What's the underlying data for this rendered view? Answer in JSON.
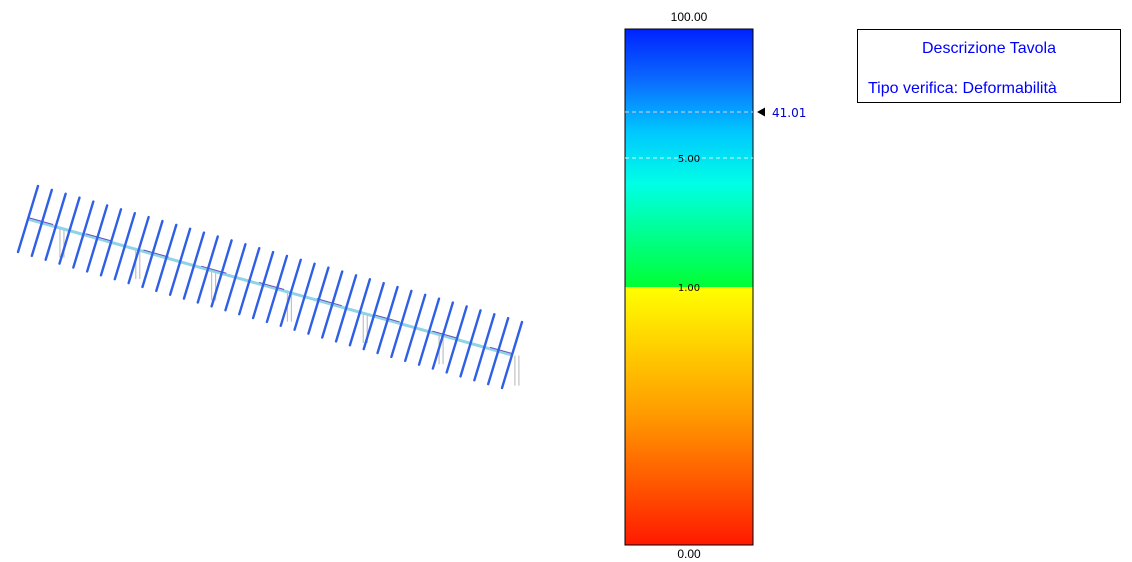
{
  "structure": {
    "rib_count": 36,
    "support_count": 7,
    "colors": {
      "ribs": "#2f5fe6",
      "beam_main": "#8fd3e6",
      "beam_alt": "#6a4fc0",
      "supports": "#c0c0c0"
    }
  },
  "color_scale": {
    "top_label": "100.00",
    "mid_label": "5.00",
    "low_label": "1.00",
    "bottom_label": "0.00",
    "marker_value": "41.01",
    "marker_color": "#0000cc",
    "upper_gradient": [
      "#0022ff",
      "#0a6bff",
      "#00c8ff",
      "#00ffe6",
      "#00ff8c",
      "#00ff33"
    ],
    "lower_gradient": [
      "#ffff00",
      "#ffcc00",
      "#ff9900",
      "#ff5a00",
      "#ff1a00"
    ]
  },
  "description": {
    "title": "Descrizione Tavola",
    "type": "Tipo verifica: Deformabilità",
    "text_color": "#0000ff"
  }
}
